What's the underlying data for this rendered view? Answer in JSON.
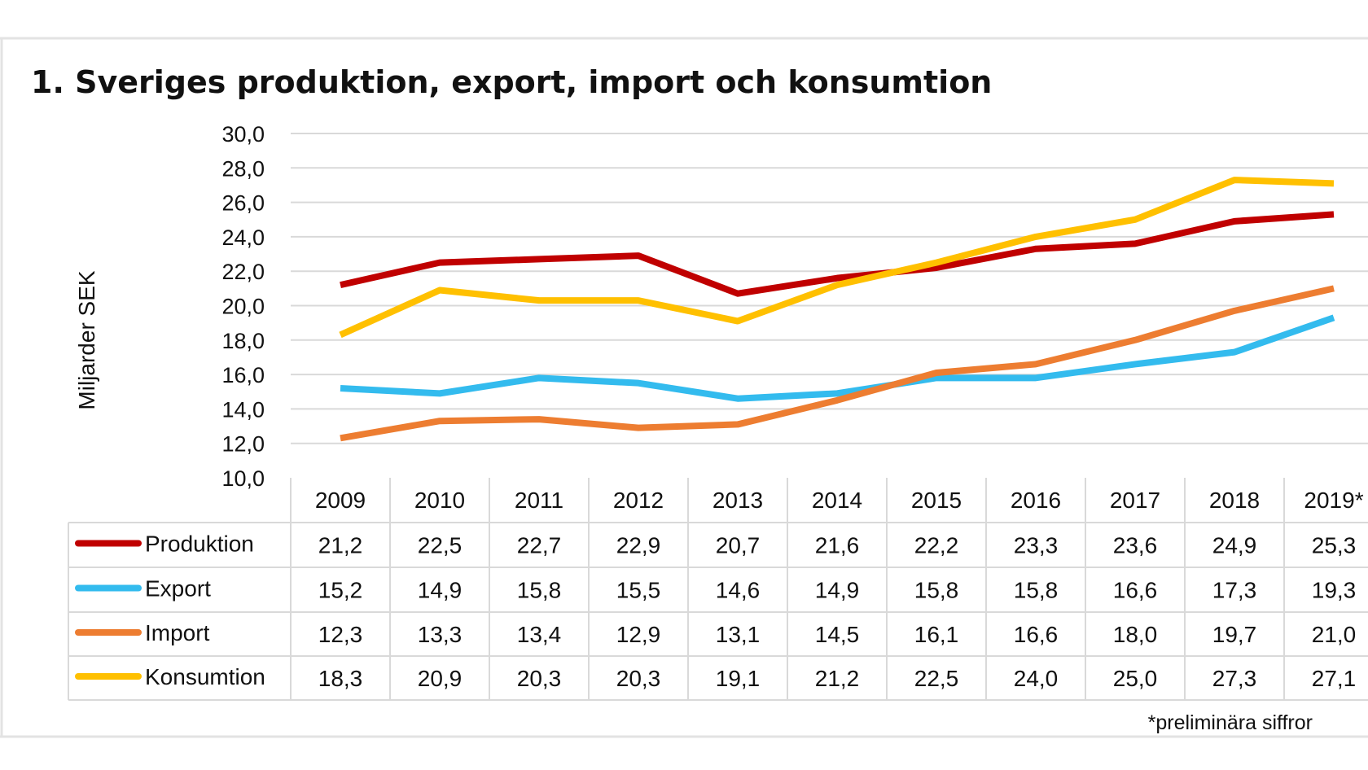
{
  "chart_data": {
    "type": "line",
    "title": "1. Sveriges produktion, export, import och konsumtion",
    "ylabel": "Miljarder SEK",
    "xlabel": "",
    "ylim": [
      10,
      30
    ],
    "yticks": [
      "10,0",
      "12,0",
      "14,0",
      "16,0",
      "18,0",
      "20,0",
      "22,0",
      "24,0",
      "26,0",
      "28,0",
      "30,0"
    ],
    "grid": true,
    "legend": "data-table-below",
    "categories": [
      "2009",
      "2010",
      "2011",
      "2012",
      "2013",
      "2014",
      "2015",
      "2016",
      "2017",
      "2018",
      "2019*"
    ],
    "series": [
      {
        "name": "Produktion",
        "color": "#c00000",
        "values": [
          21.2,
          22.5,
          22.7,
          22.9,
          20.7,
          21.6,
          22.2,
          23.3,
          23.6,
          24.9,
          25.3
        ],
        "labels": [
          "21,2",
          "22,5",
          "22,7",
          "22,9",
          "20,7",
          "21,6",
          "22,2",
          "23,3",
          "23,6",
          "24,9",
          "25,3"
        ]
      },
      {
        "name": "Export",
        "color": "#33bbee",
        "values": [
          15.2,
          14.9,
          15.8,
          15.5,
          14.6,
          14.9,
          15.8,
          15.8,
          16.6,
          17.3,
          19.3
        ],
        "labels": [
          "15,2",
          "14,9",
          "15,8",
          "15,5",
          "14,6",
          "14,9",
          "15,8",
          "15,8",
          "16,6",
          "17,3",
          "19,3"
        ]
      },
      {
        "name": "Import",
        "color": "#ed7d31",
        "values": [
          12.3,
          13.3,
          13.4,
          12.9,
          13.1,
          14.5,
          16.1,
          16.6,
          18.0,
          19.7,
          21.0
        ],
        "labels": [
          "12,3",
          "13,3",
          "13,4",
          "12,9",
          "13,1",
          "14,5",
          "16,1",
          "16,6",
          "18,0",
          "19,7",
          "21,0"
        ]
      },
      {
        "name": "Konsumtion",
        "color": "#ffc000",
        "values": [
          18.3,
          20.9,
          20.3,
          20.3,
          19.1,
          21.2,
          22.5,
          24.0,
          25.0,
          27.3,
          27.1
        ],
        "labels": [
          "18,3",
          "20,9",
          "20,3",
          "20,3",
          "19,1",
          "21,2",
          "22,5",
          "24,0",
          "25,0",
          "27,3",
          "27,1"
        ]
      }
    ],
    "footnote": "*preliminära siffror"
  }
}
